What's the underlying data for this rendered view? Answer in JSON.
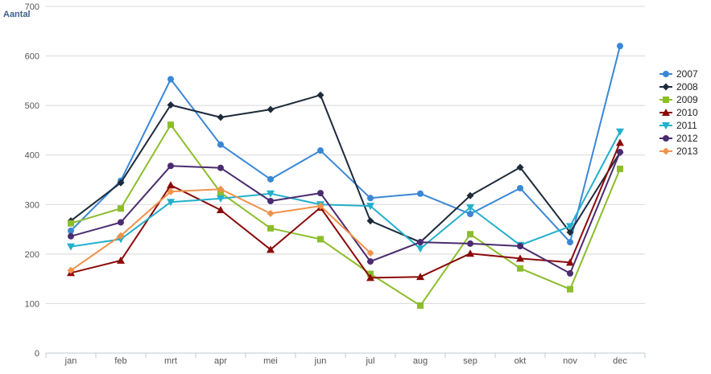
{
  "chart_data": {
    "type": "line",
    "ylabel": "Aantal",
    "xlabel": "",
    "ylim": [
      0,
      700
    ],
    "yticks": [
      0,
      100,
      200,
      300,
      400,
      500,
      600,
      700
    ],
    "categories": [
      "jan",
      "feb",
      "mrt",
      "apr",
      "mei",
      "jun",
      "jul",
      "aug",
      "sep",
      "okt",
      "nov",
      "dec"
    ],
    "grid": "horizontal",
    "legend": "right",
    "series": [
      {
        "name": "2007",
        "color": "#3a87d6",
        "marker": "circle",
        "values": [
          247,
          348,
          553,
          421,
          351,
          409,
          313,
          322,
          281,
          333,
          224,
          620
        ]
      },
      {
        "name": "2008",
        "color": "#1d2a3a",
        "marker": "diamond",
        "values": [
          267,
          344,
          501,
          476,
          492,
          521,
          267,
          224,
          318,
          375,
          244,
          405
        ]
      },
      {
        "name": "2009",
        "color": "#8cbd2b",
        "marker": "square",
        "values": [
          262,
          292,
          461,
          324,
          252,
          230,
          160,
          96,
          240,
          171,
          129,
          372
        ]
      },
      {
        "name": "2010",
        "color": "#8b0a0a",
        "marker": "triangle",
        "values": [
          162,
          187,
          339,
          289,
          209,
          294,
          152,
          154,
          201,
          191,
          183,
          425
        ]
      },
      {
        "name": "2011",
        "color": "#22b0cc",
        "marker": "triangle-down",
        "values": [
          215,
          230,
          305,
          312,
          322,
          300,
          297,
          211,
          294,
          218,
          256,
          447
        ]
      },
      {
        "name": "2012",
        "color": "#4b2c6f",
        "marker": "circle",
        "values": [
          236,
          264,
          378,
          374,
          307,
          323,
          185,
          224,
          221,
          216,
          161,
          406
        ]
      },
      {
        "name": "2013",
        "color": "#f0924a",
        "marker": "diamond",
        "values": [
          167,
          237,
          326,
          331,
          282,
          297,
          202,
          null,
          null,
          null,
          null,
          null
        ]
      }
    ]
  }
}
